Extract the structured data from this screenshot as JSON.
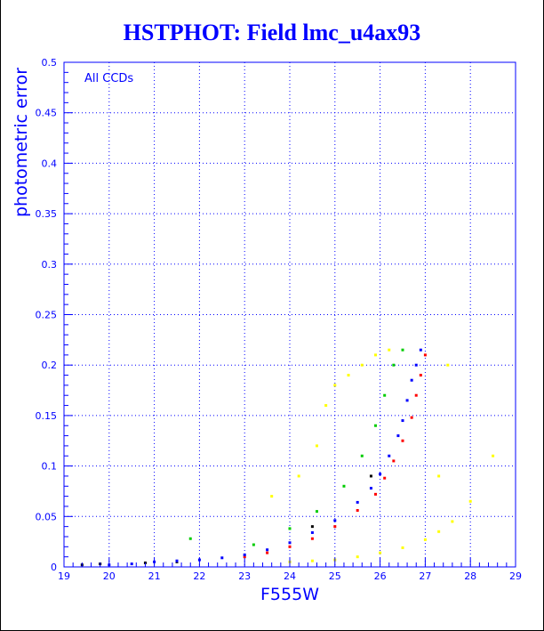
{
  "chart_data": {
    "type": "scatter",
    "title": "HSTPHOT: Field lmc_u4ax93",
    "xlabel": "F555W",
    "ylabel": "photometric error",
    "annotation": "All CCDs",
    "xlim": [
      19,
      29
    ],
    "ylim": [
      0,
      0.5
    ],
    "x_ticks": [
      "19",
      "20",
      "21",
      "22",
      "23",
      "24",
      "25",
      "26",
      "27",
      "28",
      "29"
    ],
    "y_ticks": [
      "0",
      "0.05",
      "0.1",
      "0.15",
      "0.2",
      "0.25",
      "0.3",
      "0.35",
      "0.4",
      "0.45",
      "0.5"
    ],
    "grid": true,
    "grid_style": "dotted",
    "colors": {
      "axes": "#0000ff",
      "grid": "#0000ff",
      "blue": "#0000ff",
      "red": "#ff0000",
      "green": "#00cc00",
      "yellow": "#ffff00",
      "black": "#000000"
    },
    "series": [
      {
        "color": "blue",
        "points": [
          [
            20.0,
            0.002
          ],
          [
            20.5,
            0.003
          ],
          [
            21.0,
            0.005
          ],
          [
            21.5,
            0.006
          ],
          [
            22.0,
            0.007
          ],
          [
            22.5,
            0.009
          ],
          [
            23.0,
            0.012
          ],
          [
            23.5,
            0.017
          ],
          [
            24.0,
            0.024
          ],
          [
            24.5,
            0.034
          ],
          [
            25.0,
            0.046
          ],
          [
            25.5,
            0.064
          ],
          [
            25.8,
            0.078
          ],
          [
            26.0,
            0.092
          ],
          [
            26.2,
            0.11
          ],
          [
            26.4,
            0.13
          ],
          [
            26.5,
            0.145
          ],
          [
            26.6,
            0.165
          ],
          [
            26.7,
            0.185
          ],
          [
            26.8,
            0.2
          ],
          [
            26.9,
            0.215
          ]
        ]
      },
      {
        "color": "red",
        "points": [
          [
            23.0,
            0.01
          ],
          [
            23.5,
            0.014
          ],
          [
            24.0,
            0.02
          ],
          [
            24.5,
            0.028
          ],
          [
            25.0,
            0.04
          ],
          [
            25.5,
            0.056
          ],
          [
            25.9,
            0.072
          ],
          [
            26.1,
            0.088
          ],
          [
            26.3,
            0.105
          ],
          [
            26.5,
            0.125
          ],
          [
            26.7,
            0.148
          ],
          [
            26.8,
            0.17
          ],
          [
            26.9,
            0.19
          ],
          [
            27.0,
            0.21
          ]
        ]
      },
      {
        "color": "green",
        "points": [
          [
            21.8,
            0.028
          ],
          [
            23.2,
            0.022
          ],
          [
            24.0,
            0.038
          ],
          [
            24.6,
            0.055
          ],
          [
            25.2,
            0.08
          ],
          [
            25.6,
            0.11
          ],
          [
            25.9,
            0.14
          ],
          [
            26.1,
            0.17
          ],
          [
            26.3,
            0.2
          ],
          [
            26.5,
            0.215
          ]
        ]
      },
      {
        "color": "yellow",
        "points": [
          [
            24.0,
            0.005
          ],
          [
            24.5,
            0.006
          ],
          [
            25.0,
            0.007
          ],
          [
            25.5,
            0.01
          ],
          [
            26.0,
            0.014
          ],
          [
            26.5,
            0.019
          ],
          [
            27.0,
            0.027
          ],
          [
            27.3,
            0.035
          ],
          [
            27.6,
            0.045
          ],
          [
            28.0,
            0.065
          ],
          [
            28.5,
            0.11
          ],
          [
            23.6,
            0.07
          ],
          [
            24.2,
            0.09
          ],
          [
            24.6,
            0.12
          ],
          [
            24.8,
            0.16
          ],
          [
            25.0,
            0.18
          ],
          [
            25.3,
            0.19
          ],
          [
            25.6,
            0.2
          ],
          [
            25.9,
            0.21
          ],
          [
            26.2,
            0.215
          ],
          [
            27.5,
            0.2
          ],
          [
            27.3,
            0.09
          ]
        ]
      },
      {
        "color": "black",
        "points": [
          [
            19.4,
            0.002
          ],
          [
            19.8,
            0.003
          ],
          [
            20.8,
            0.004
          ],
          [
            21.5,
            0.005
          ],
          [
            24.5,
            0.04
          ],
          [
            25.8,
            0.09
          ]
        ]
      }
    ]
  }
}
